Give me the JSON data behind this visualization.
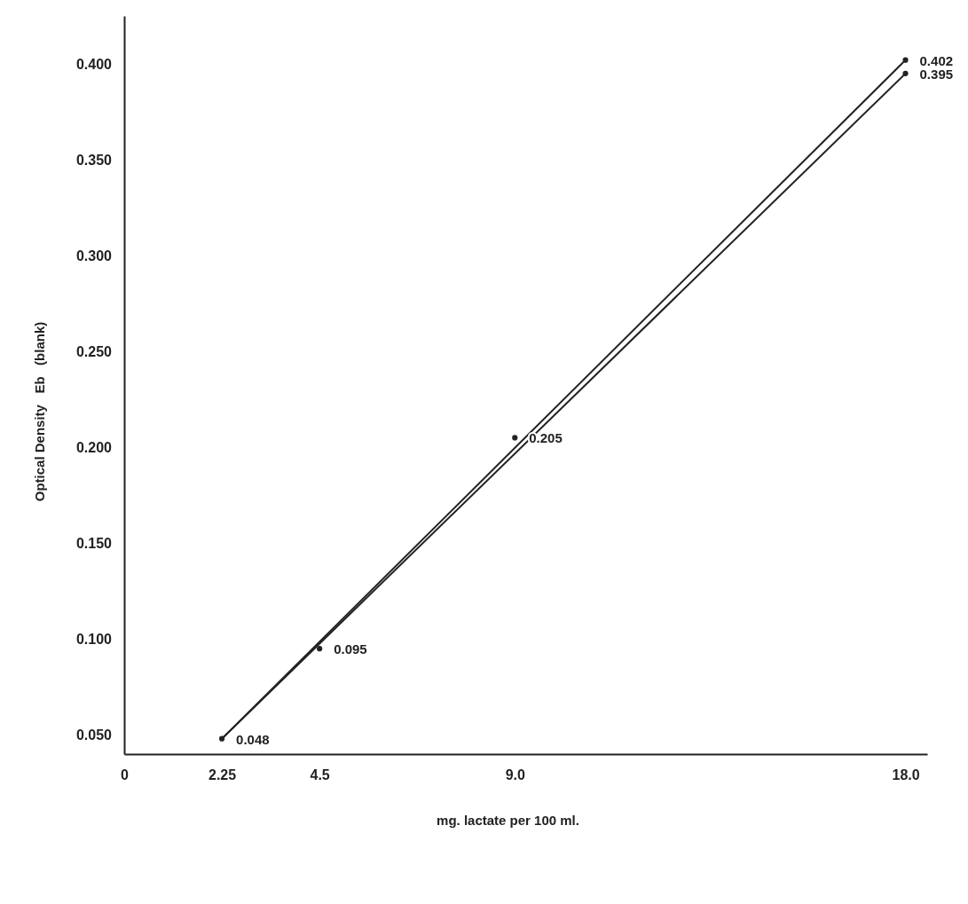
{
  "chart_data": {
    "type": "line",
    "xlabel": "mg. lactate per 100 ml.",
    "ylabel": "Optical Density   Eb   (blank)",
    "xlim": [
      0,
      18.5
    ],
    "ylim": [
      0.04,
      0.425
    ],
    "xticks": [
      0,
      2.25,
      4.5,
      {
        "value": 9,
        "label": "9.0"
      },
      {
        "value": 18,
        "label": "18.0"
      }
    ],
    "yticks": [
      {
        "value": 0.05,
        "label": "0.050"
      },
      {
        "value": 0.1,
        "label": "0.100"
      },
      {
        "value": 0.15,
        "label": "0.150"
      },
      {
        "value": 0.2,
        "label": "0.200"
      },
      {
        "value": 0.25,
        "label": "0.250"
      },
      {
        "value": 0.3,
        "label": "0.300"
      },
      {
        "value": 0.35,
        "label": "0.350"
      },
      {
        "value": 0.4,
        "label": "0.400"
      }
    ],
    "grid": false,
    "series": [
      {
        "color": "#222222",
        "x": [
          2.25,
          18
        ],
        "values": [
          0.048,
          0.402
        ],
        "marker": "none"
      },
      {
        "color": "#222222",
        "x": [
          2.25,
          18
        ],
        "values": [
          0.048,
          0.395
        ],
        "marker": "none"
      },
      {
        "type": "scatter",
        "color": "#222222",
        "marker": "circle",
        "x": [
          2.25,
          4.5,
          9,
          18,
          18
        ],
        "values": [
          0.048,
          0.095,
          0.205,
          0.402,
          0.395
        ],
        "value_labels": [
          "0.048",
          "0.095",
          "0.205",
          "0.402",
          "0.395"
        ]
      }
    ]
  }
}
